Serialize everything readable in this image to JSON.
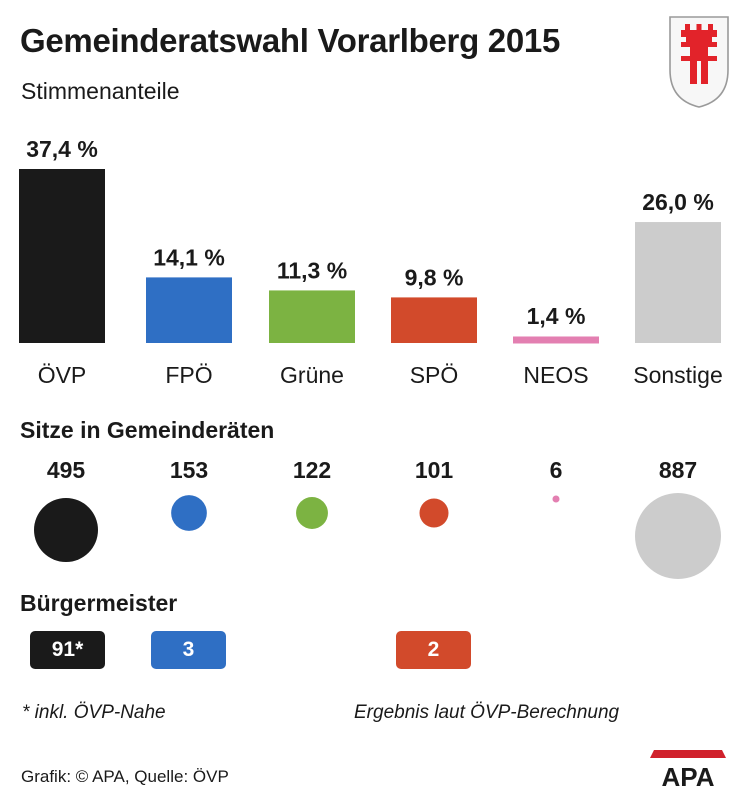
{
  "header": {
    "title": "Gemeinderatswahl Vorarlberg 2015",
    "subtitle": "Stimmenanteile"
  },
  "sections": {
    "seats": "Sitze in Gemeinderäten",
    "mayors": "Bürgermeister"
  },
  "notes": {
    "footnote": "* inkl. ÖVP-Nahe",
    "calc": "Ergebnis laut ÖVP-Berechnung"
  },
  "footer": {
    "source": "Grafik: © APA, Quelle: ÖVP",
    "logo": "APA"
  },
  "emblem": {
    "icon": "vorarlberg-coat-of-arms-icon",
    "red": "#e2232a",
    "frame": "#9a9a9a"
  },
  "colors": {
    "ÖVP": "#1a1a1a",
    "FPÖ": "#2f6fc4",
    "Grüne": "#7cb342",
    "SPÖ": "#d24a2b",
    "NEOS": "#e37fb1",
    "Sonstige": "#cccccc"
  },
  "chart_data": [
    {
      "type": "bar",
      "title": "Stimmenanteile",
      "categories": [
        "ÖVP",
        "FPÖ",
        "Grüne",
        "SPÖ",
        "NEOS",
        "Sonstige"
      ],
      "values": [
        37.4,
        14.1,
        11.3,
        9.8,
        1.4,
        26.0
      ],
      "labels": [
        "37,4 %",
        "14,1 %",
        "11,3 %",
        "9,8 %",
        "1,4 %",
        "26,0 %"
      ],
      "unit": "%",
      "ylim": [
        0,
        37.4
      ]
    },
    {
      "type": "scatter",
      "title": "Sitze in Gemeinderäten",
      "categories": [
        "ÖVP",
        "FPÖ",
        "Grüne",
        "SPÖ",
        "NEOS",
        "Sonstige"
      ],
      "values": [
        495,
        153,
        122,
        101,
        6,
        887
      ],
      "labels": [
        "495",
        "153",
        "122",
        "101",
        "6",
        "887"
      ]
    },
    {
      "type": "table",
      "title": "Bürgermeister",
      "categories": [
        "ÖVP",
        "FPÖ",
        "SPÖ"
      ],
      "values": [
        91,
        3,
        2
      ],
      "labels": [
        "91*",
        "3",
        "2"
      ]
    }
  ]
}
